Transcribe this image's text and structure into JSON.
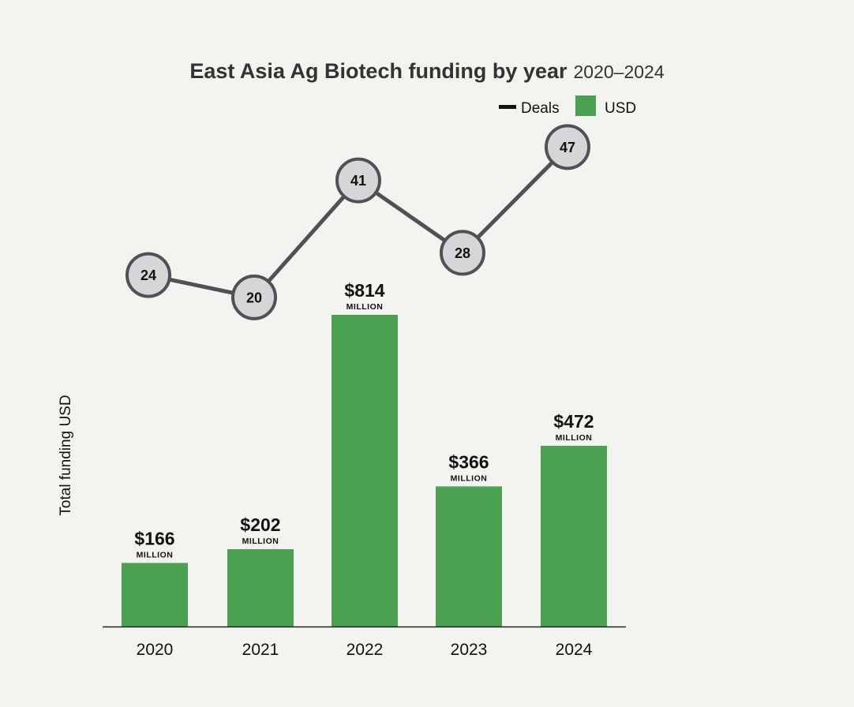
{
  "chart_data": {
    "type": "bar+line",
    "title": "East Asia Ag Biotech funding by year",
    "subtitle": "2020–2024",
    "ylabel": "Total funding USD",
    "categories": [
      "2020",
      "2021",
      "2022",
      "2023",
      "2024"
    ],
    "series": [
      {
        "name": "USD",
        "kind": "bar",
        "color": "#4ba152",
        "values": [
          166,
          202,
          814,
          366,
          472
        ],
        "value_labels": [
          "$166",
          "$202",
          "$814",
          "$366",
          "$472"
        ],
        "unit_label": "MILLION"
      },
      {
        "name": "Deals",
        "kind": "line",
        "color": "#4e5257",
        "marker_fill": "#d6d6d8",
        "values": [
          24,
          20,
          41,
          28,
          47
        ]
      }
    ],
    "legend": {
      "position": "top-right",
      "entries": [
        "Deals",
        "USD"
      ]
    },
    "grid": false
  }
}
